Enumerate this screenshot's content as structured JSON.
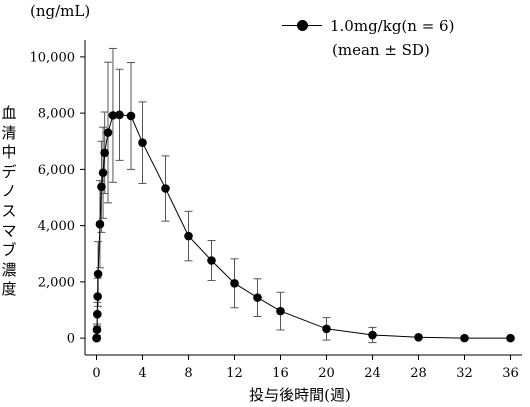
{
  "chart_data": {
    "type": "line",
    "unit_label": "(ng/mL)",
    "ylabel": "血清中デノスマブ濃度",
    "xlabel": "投与後時間(週)",
    "legend": {
      "series_label": "1.0mg/kg(n = 6)",
      "note": "(mean ± SD)",
      "placement": "top-right"
    },
    "xlim": [
      -1,
      37
    ],
    "ylim": [
      -600,
      10600
    ],
    "xticks": [
      0,
      4,
      8,
      12,
      16,
      20,
      24,
      28,
      32,
      36
    ],
    "yticks": [
      0,
      2000,
      4000,
      6000,
      8000,
      10000
    ],
    "yticklabels": [
      "0",
      "2,000",
      "4,000",
      "6,000",
      "8,000",
      "10,000"
    ],
    "grid": false,
    "series": [
      {
        "name": "1.0mg/kg(n = 6)",
        "x": [
          0,
          0.02,
          0.04,
          0.07,
          0.1,
          0.14,
          0.3,
          0.43,
          0.57,
          0.71,
          1.0,
          1.43,
          2.0,
          3.0,
          4.0,
          6.0,
          8.0,
          10.0,
          12.0,
          14.0,
          16.0,
          20.0,
          24.0,
          28.0,
          32.0,
          36.0
        ],
        "y": [
          0,
          0,
          300,
          850,
          1480,
          2280,
          4050,
          5380,
          5880,
          6590,
          7310,
          7920,
          7940,
          7900,
          6950,
          5320,
          3630,
          2760,
          1950,
          1440,
          960,
          330,
          110,
          30,
          0,
          0
        ],
        "sd": [
          0,
          0,
          200,
          420,
          650,
          1150,
          1550,
          1620,
          1620,
          1450,
          2500,
          2380,
          1620,
          1900,
          1450,
          1160,
          880,
          710,
          870,
          670,
          670,
          400,
          270,
          0,
          0,
          0
        ]
      }
    ]
  }
}
